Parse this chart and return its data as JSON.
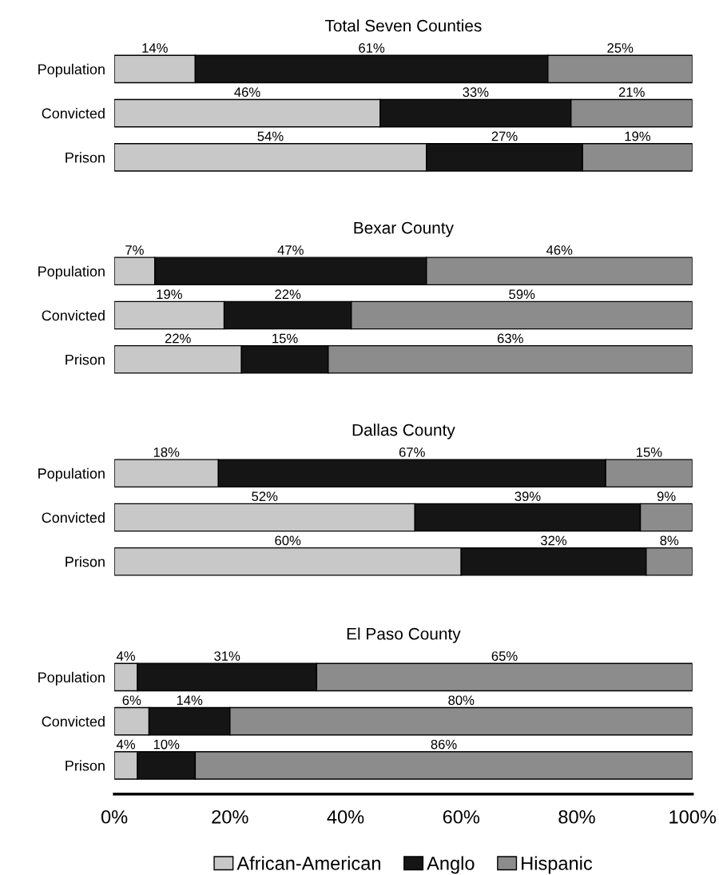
{
  "chart_data": [
    {
      "type": "bar",
      "orientation": "horizontal",
      "stacked": true,
      "title": "Total Seven Counties",
      "categories": [
        "Population",
        "Convicted",
        "Prison"
      ],
      "xlim": [
        0,
        100
      ],
      "tick_labels": "y",
      "legend": false,
      "grid": false,
      "series": [
        {
          "color": "#c8c8c8",
          "values": [
            14,
            46,
            54
          ],
          "value_labels": [
            "14%",
            "46%",
            "54%"
          ]
        },
        {
          "color": "#151515",
          "values": [
            61,
            33,
            27
          ],
          "value_labels": [
            "61%",
            "33%",
            "27%"
          ]
        },
        {
          "color": "#8c8c8c",
          "values": [
            25,
            21,
            19
          ],
          "value_labels": [
            "25%",
            "21%",
            "19%"
          ]
        }
      ]
    },
    {
      "type": "bar",
      "orientation": "horizontal",
      "stacked": true,
      "title": "Bexar County",
      "categories": [
        "Population",
        "Convicted",
        "Prison"
      ],
      "xlim": [
        0,
        100
      ],
      "tick_labels": "y",
      "legend": false,
      "grid": false,
      "series": [
        {
          "color": "#c8c8c8",
          "values": [
            7,
            19,
            22
          ],
          "value_labels": [
            "7%",
            "19%",
            "22%"
          ]
        },
        {
          "color": "#151515",
          "values": [
            47,
            22,
            15
          ],
          "value_labels": [
            "47%",
            "22%",
            "15%"
          ]
        },
        {
          "color": "#8c8c8c",
          "values": [
            46,
            59,
            63
          ],
          "value_labels": [
            "46%",
            "59%",
            "63%"
          ]
        }
      ]
    },
    {
      "type": "bar",
      "orientation": "horizontal",
      "stacked": true,
      "title": "Dallas County",
      "categories": [
        "Population",
        "Convicted",
        "Prison"
      ],
      "xlim": [
        0,
        100
      ],
      "tick_labels": "y",
      "legend": false,
      "grid": false,
      "series": [
        {
          "color": "#c8c8c8",
          "values": [
            18,
            52,
            60
          ],
          "value_labels": [
            "18%",
            "52%",
            "60%"
          ]
        },
        {
          "color": "#151515",
          "values": [
            67,
            39,
            32
          ],
          "value_labels": [
            "67%",
            "39%",
            "32%"
          ]
        },
        {
          "color": "#8c8c8c",
          "values": [
            15,
            9,
            8
          ],
          "value_labels": [
            "15%",
            "9%",
            "8%"
          ]
        }
      ]
    },
    {
      "type": "bar",
      "orientation": "horizontal",
      "stacked": true,
      "title": "El Paso County",
      "categories": [
        "Population",
        "Convicted",
        "Prison"
      ],
      "xlim": [
        0,
        100
      ],
      "xticks": [
        {
          "value": 0,
          "label": "0%"
        },
        {
          "value": 20,
          "label": "20%"
        },
        {
          "value": 40,
          "label": "40%"
        },
        {
          "value": 60,
          "label": "60%"
        },
        {
          "value": 80,
          "label": "80%"
        },
        {
          "value": 100,
          "label": "100%"
        }
      ],
      "legend": "bottom",
      "grid": false,
      "series": [
        {
          "name": "African-American",
          "color": "#c8c8c8",
          "values": [
            4,
            6,
            4
          ],
          "value_labels": [
            "4%",
            "6%",
            "4%"
          ]
        },
        {
          "name": "Anglo",
          "color": "#151515",
          "values": [
            31,
            14,
            10
          ],
          "value_labels": [
            "31%",
            "14%",
            "10%"
          ]
        },
        {
          "name": "Hispanic",
          "color": "#8c8c8c",
          "values": [
            65,
            80,
            86
          ],
          "value_labels": [
            "65%",
            "80%",
            "86%"
          ]
        }
      ]
    }
  ]
}
